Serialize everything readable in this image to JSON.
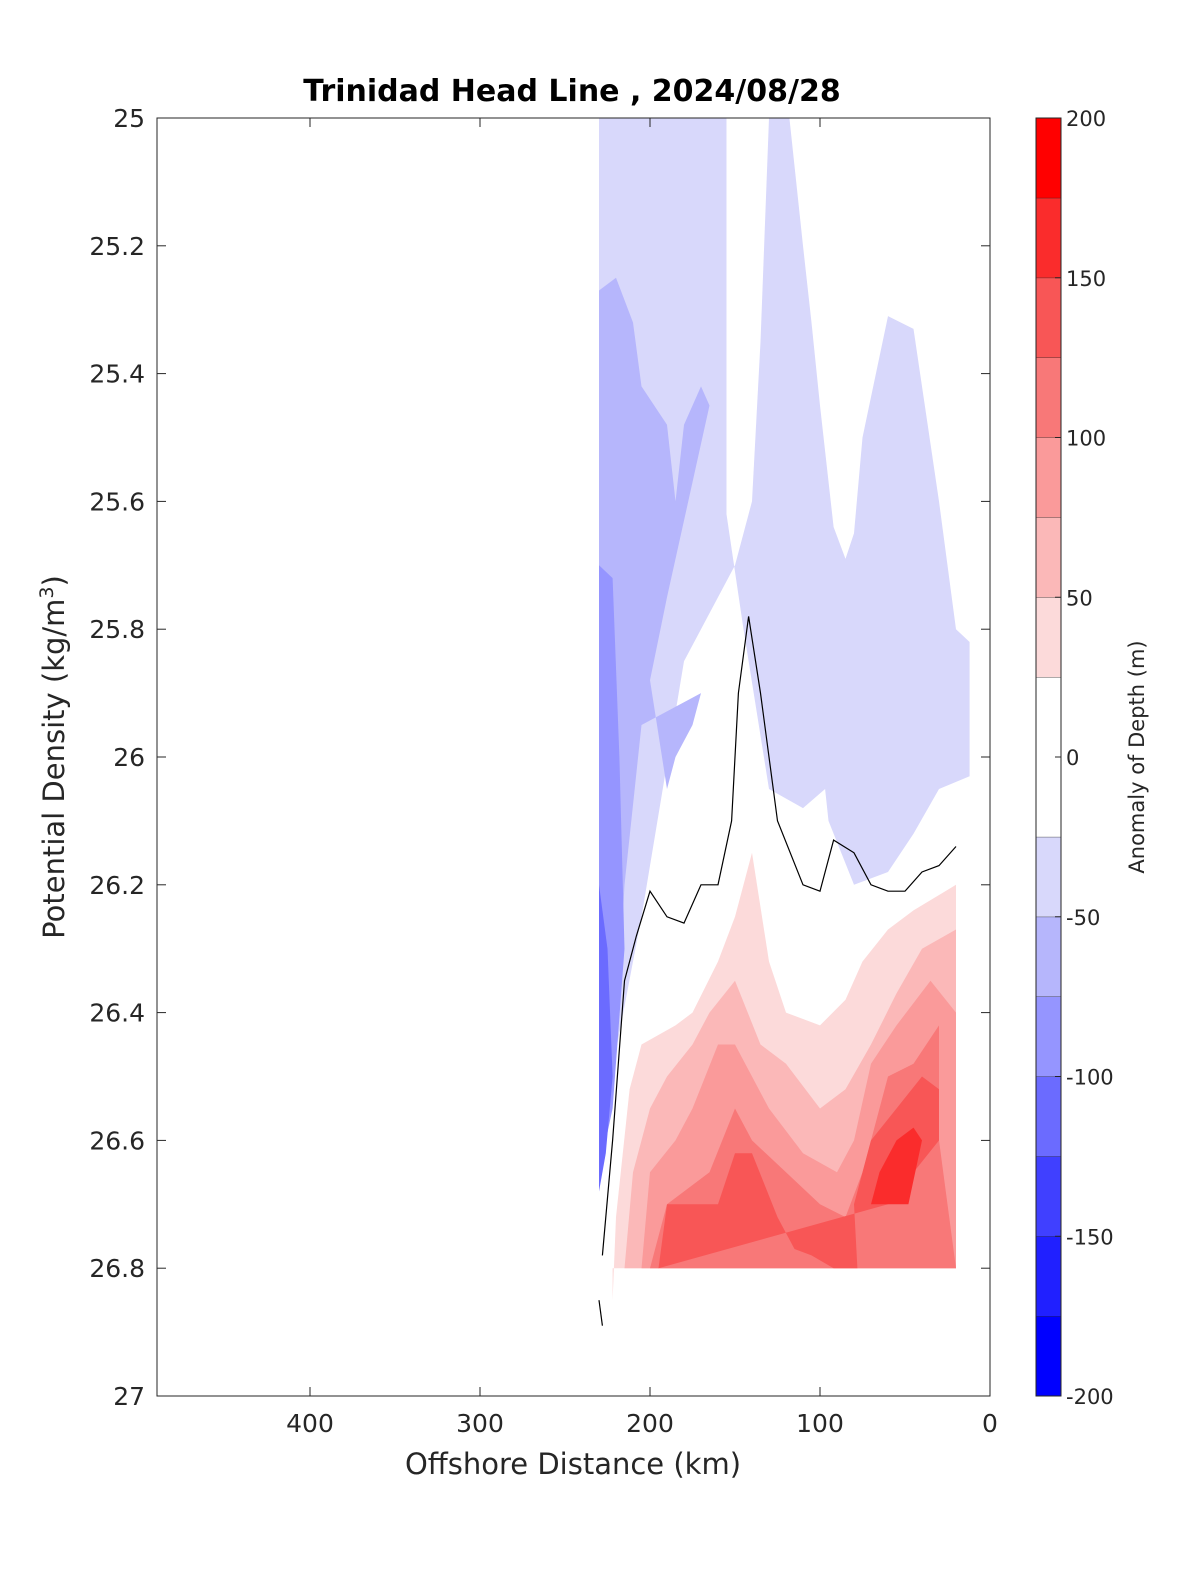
{
  "chart_data": {
    "type": "contour",
    "title": "Trinidad Head Line , 2024/08/28",
    "xlabel": "Offshore Distance (km)",
    "ylabel_main": "Potential Density (kg/m",
    "ylabel_sup": "3",
    "ylabel_close": ")",
    "colorbar_label": "Anomaly of Depth (m)",
    "xlim": [
      490,
      0
    ],
    "ylim": [
      25,
      27
    ],
    "x_reversed": true,
    "y_reversed": true,
    "x_ticks": [
      {
        "value": 400,
        "label": "400"
      },
      {
        "value": 300,
        "label": "300"
      },
      {
        "value": 200,
        "label": "200"
      },
      {
        "value": 100,
        "label": "100"
      },
      {
        "value": 0,
        "label": "0"
      }
    ],
    "y_ticks": [
      {
        "value": 25,
        "label": "25"
      },
      {
        "value": 25.2,
        "label": "25.2"
      },
      {
        "value": 25.4,
        "label": "25.4"
      },
      {
        "value": 25.6,
        "label": "25.6"
      },
      {
        "value": 25.8,
        "label": "25.8"
      },
      {
        "value": 26,
        "label": "26"
      },
      {
        "value": 26.2,
        "label": "26.2"
      },
      {
        "value": 26.4,
        "label": "26.4"
      },
      {
        "value": 26.6,
        "label": "26.6"
      },
      {
        "value": 26.8,
        "label": "26.8"
      },
      {
        "value": 27,
        "label": "27"
      }
    ],
    "colorbar": {
      "range": [
        -200,
        200
      ],
      "levels": [
        -200,
        -175,
        -150,
        -125,
        -100,
        -75,
        -50,
        -25,
        25,
        50,
        75,
        100,
        125,
        150,
        175,
        200
      ],
      "colors": [
        "#0000ff",
        "#2020ff",
        "#4040ff",
        "#6b6bff",
        "#9595ff",
        "#b6b6fc",
        "#d8d8fb",
        "#ffffff",
        "#fcdada",
        "#fbb8b8",
        "#fa9a9a",
        "#f87878",
        "#f85656",
        "#fa2c2c",
        "#ff0000"
      ],
      "ticks": [
        {
          "value": 200,
          "label": "200"
        },
        {
          "value": 150,
          "label": "150"
        },
        {
          "value": 100,
          "label": "100"
        },
        {
          "value": 50,
          "label": "50"
        },
        {
          "value": 0,
          "label": "0"
        },
        {
          "value": -50,
          "label": "-50"
        },
        {
          "value": -100,
          "label": "-100"
        },
        {
          "value": -150,
          "label": "-150"
        },
        {
          "value": -200,
          "label": "-200"
        }
      ]
    },
    "filled_regions": [
      {
        "level": -37.5,
        "color": "#d8d8fb",
        "points": [
          [
            230,
            25
          ],
          [
            155,
            25
          ],
          [
            155,
            25.62
          ],
          [
            145,
            25.8
          ],
          [
            130,
            26.05
          ],
          [
            110,
            26.08
          ],
          [
            97,
            26.05
          ],
          [
            95,
            26.1
          ],
          [
            80,
            26.2
          ],
          [
            60,
            26.18
          ],
          [
            45,
            26.12
          ],
          [
            30,
            26.05
          ],
          [
            12,
            26.03
          ],
          [
            12,
            25.82
          ],
          [
            20,
            25.8
          ],
          [
            30,
            25.6
          ],
          [
            45,
            25.33
          ],
          [
            60,
            25.31
          ],
          [
            75,
            25.5
          ],
          [
            80,
            25.65
          ],
          [
            85,
            25.69
          ],
          [
            92,
            25.64
          ],
          [
            100,
            25.45
          ],
          [
            105,
            25.32
          ],
          [
            110,
            25.2
          ],
          [
            118,
            25
          ],
          [
            130,
            25
          ],
          [
            135,
            25.35
          ],
          [
            140,
            25.6
          ],
          [
            150,
            25.7
          ],
          [
            180,
            25.85
          ],
          [
            205,
            26.25
          ],
          [
            230,
            26.6
          ]
        ]
      },
      {
        "level": -62.5,
        "color": "#b6b6fc",
        "points": [
          [
            230,
            25.27
          ],
          [
            220,
            25.25
          ],
          [
            210,
            25.32
          ],
          [
            205,
            25.42
          ],
          [
            190,
            25.48
          ],
          [
            185,
            25.6
          ],
          [
            180,
            25.48
          ],
          [
            170,
            25.42
          ],
          [
            165,
            25.45
          ],
          [
            190,
            25.75
          ],
          [
            200,
            25.88
          ],
          [
            190,
            26.05
          ],
          [
            185,
            26.0
          ],
          [
            175,
            25.95
          ],
          [
            170,
            25.9
          ],
          [
            205,
            25.95
          ],
          [
            215,
            26.2
          ],
          [
            220,
            26.45
          ],
          [
            230,
            26.62
          ]
        ]
      },
      {
        "level": -87.5,
        "color": "#9595ff",
        "points": [
          [
            230,
            25.7
          ],
          [
            222,
            25.72
          ],
          [
            218,
            26.0
          ],
          [
            215,
            26.3
          ],
          [
            222,
            26.55
          ],
          [
            230,
            26.65
          ]
        ]
      },
      {
        "level": -112.5,
        "color": "#6b6bff",
        "points": [
          [
            230,
            26.2
          ],
          [
            225,
            26.3
          ],
          [
            222,
            26.5
          ],
          [
            226,
            26.62
          ],
          [
            230,
            26.68
          ]
        ]
      },
      {
        "level": 37.5,
        "color": "#fcdada",
        "points": [
          [
            222,
            26.85
          ],
          [
            220,
            26.72
          ],
          [
            212,
            26.52
          ],
          [
            205,
            26.45
          ],
          [
            185,
            26.42
          ],
          [
            175,
            26.4
          ],
          [
            160,
            26.32
          ],
          [
            150,
            26.25
          ],
          [
            140,
            26.15
          ],
          [
            130,
            26.32
          ],
          [
            120,
            26.4
          ],
          [
            100,
            26.42
          ],
          [
            85,
            26.38
          ],
          [
            75,
            26.32
          ],
          [
            60,
            26.27
          ],
          [
            45,
            26.24
          ],
          [
            20,
            26.2
          ],
          [
            20,
            26.8
          ],
          [
            222,
            26.8
          ]
        ]
      },
      {
        "level": 62.5,
        "color": "#fbb8b8",
        "points": [
          [
            215,
            26.8
          ],
          [
            210,
            26.65
          ],
          [
            200,
            26.55
          ],
          [
            190,
            26.5
          ],
          [
            175,
            26.45
          ],
          [
            165,
            26.4
          ],
          [
            150,
            26.35
          ],
          [
            135,
            26.45
          ],
          [
            120,
            26.48
          ],
          [
            100,
            26.55
          ],
          [
            85,
            26.52
          ],
          [
            70,
            26.45
          ],
          [
            55,
            26.37
          ],
          [
            40,
            26.3
          ],
          [
            20,
            26.27
          ],
          [
            20,
            26.8
          ]
        ]
      },
      {
        "level": 87.5,
        "color": "#fa9a9a",
        "points": [
          [
            205,
            26.8
          ],
          [
            200,
            26.65
          ],
          [
            185,
            26.6
          ],
          [
            175,
            26.55
          ],
          [
            160,
            26.45
          ],
          [
            150,
            26.45
          ],
          [
            130,
            26.55
          ],
          [
            110,
            26.62
          ],
          [
            90,
            26.65
          ],
          [
            80,
            26.6
          ],
          [
            70,
            26.48
          ],
          [
            55,
            26.42
          ],
          [
            35,
            26.35
          ],
          [
            20,
            26.4
          ],
          [
            20,
            26.8
          ]
        ]
      },
      {
        "level": 112.5,
        "color": "#f87878",
        "points": [
          [
            200,
            26.8
          ],
          [
            190,
            26.7
          ],
          [
            165,
            26.65
          ],
          [
            150,
            26.55
          ],
          [
            140,
            26.6
          ],
          [
            120,
            26.65
          ],
          [
            100,
            26.7
          ],
          [
            85,
            26.72
          ],
          [
            75,
            26.65
          ],
          [
            60,
            26.5
          ],
          [
            45,
            26.48
          ],
          [
            30,
            26.42
          ],
          [
            30,
            26.6
          ],
          [
            20,
            26.8
          ]
        ]
      },
      {
        "level": 137.5,
        "color": "#f85656",
        "points": [
          [
            195,
            26.8
          ],
          [
            190,
            26.7
          ],
          [
            160,
            26.7
          ],
          [
            150,
            26.62
          ],
          [
            140,
            26.62
          ],
          [
            125,
            26.72
          ],
          [
            115,
            26.77
          ],
          [
            105,
            26.78
          ],
          [
            92,
            26.8
          ],
          [
            78,
            26.8
          ],
          [
            80,
            26.7
          ],
          [
            70,
            26.6
          ],
          [
            55,
            26.55
          ],
          [
            40,
            26.5
          ],
          [
            30,
            26.52
          ],
          [
            30,
            26.6
          ],
          [
            60,
            26.7
          ]
        ]
      },
      {
        "level": 162.5,
        "color": "#fa2c2c",
        "points": [
          [
            70,
            26.7
          ],
          [
            65,
            26.65
          ],
          [
            55,
            26.6
          ],
          [
            45,
            26.58
          ],
          [
            40,
            26.6
          ],
          [
            48,
            26.7
          ]
        ]
      }
    ],
    "zero_contour": [
      [
        228,
        26.78
      ],
      [
        222,
        26.6
      ],
      [
        215,
        26.35
      ],
      [
        208,
        26.28
      ],
      [
        200,
        26.21
      ],
      [
        190,
        26.25
      ],
      [
        180,
        26.26
      ],
      [
        170,
        26.2
      ],
      [
        160,
        26.2
      ],
      [
        152,
        26.1
      ],
      [
        148,
        25.9
      ],
      [
        142,
        25.78
      ],
      [
        135,
        25.9
      ],
      [
        125,
        26.1
      ],
      [
        110,
        26.2
      ],
      [
        100,
        26.21
      ],
      [
        92,
        26.13
      ],
      [
        80,
        26.15
      ],
      [
        70,
        26.2
      ],
      [
        60,
        26.21
      ],
      [
        50,
        26.21
      ],
      [
        40,
        26.18
      ],
      [
        30,
        26.17
      ],
      [
        20,
        26.14
      ]
    ],
    "zero_contour_tail": [
      [
        230,
        26.85
      ],
      [
        228,
        26.89
      ]
    ]
  }
}
